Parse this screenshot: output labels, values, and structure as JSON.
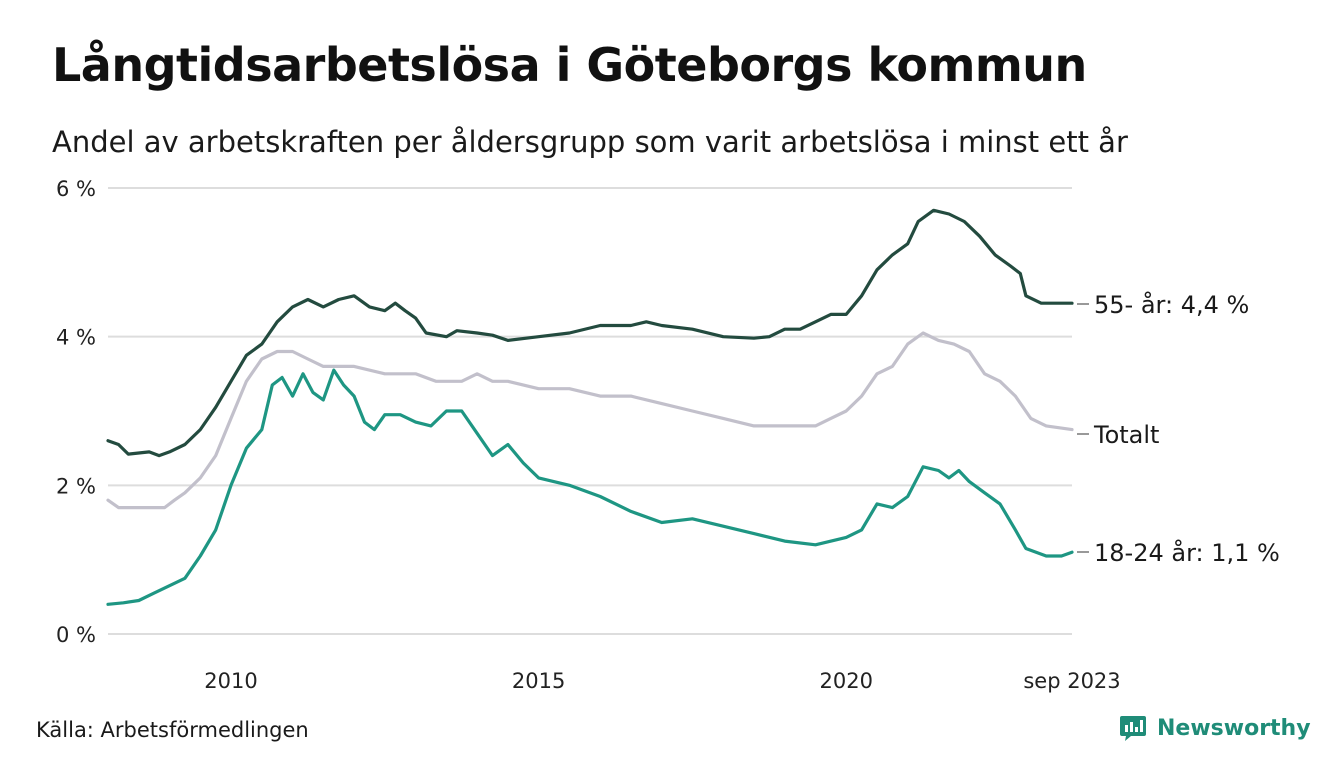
{
  "header": {
    "title": "Långtidsarbetslösa i Göteborgs kommun",
    "subtitle": "Andel av arbetskraften per åldersgrupp som varit arbetslösa i minst ett år"
  },
  "footer": {
    "source": "Källa: Arbetsförmedlingen",
    "brand": "Newsworthy",
    "brand_icon": "newsworthy-logo-icon"
  },
  "colors": {
    "series_55": "#234b3f",
    "series_total": "#c2c0cb",
    "series_18_24": "#1e9683",
    "grid": "#dddddd",
    "brand": "#1f8c78"
  },
  "chart_data": {
    "type": "line",
    "title": "Långtidsarbetslösa i Göteborgs kommun",
    "subtitle": "Andel av arbetskraften per åldersgrupp som varit arbetslösa i minst ett år",
    "xlabel": "",
    "ylabel": "",
    "x_range": [
      2008.0,
      2023.67
    ],
    "ylim": [
      0,
      6
    ],
    "y_ticks": [
      {
        "value": 0,
        "label": "0 %"
      },
      {
        "value": 2,
        "label": "2 %"
      },
      {
        "value": 4,
        "label": "4 %"
      },
      {
        "value": 6,
        "label": "6 %"
      }
    ],
    "x_ticks": [
      {
        "value": 2010,
        "label": "2010"
      },
      {
        "value": 2015,
        "label": "2015"
      },
      {
        "value": 2020,
        "label": "2020"
      },
      {
        "value": 2023.67,
        "label": "sep 2023"
      }
    ],
    "grid": true,
    "legend": "inline-end-labels",
    "series": [
      {
        "name": "55- år",
        "end_label": "55- år: 4,4 %",
        "color": "#234b3f",
        "points": [
          [
            2008.0,
            2.6
          ],
          [
            2008.17,
            2.55
          ],
          [
            2008.33,
            2.42
          ],
          [
            2008.67,
            2.45
          ],
          [
            2008.83,
            2.4
          ],
          [
            2009.0,
            2.45
          ],
          [
            2009.25,
            2.55
          ],
          [
            2009.5,
            2.75
          ],
          [
            2009.75,
            3.05
          ],
          [
            2010.0,
            3.4
          ],
          [
            2010.25,
            3.75
          ],
          [
            2010.5,
            3.9
          ],
          [
            2010.75,
            4.2
          ],
          [
            2011.0,
            4.4
          ],
          [
            2011.25,
            4.5
          ],
          [
            2011.5,
            4.4
          ],
          [
            2011.75,
            4.5
          ],
          [
            2012.0,
            4.55
          ],
          [
            2012.25,
            4.4
          ],
          [
            2012.5,
            4.35
          ],
          [
            2012.67,
            4.45
          ],
          [
            2012.83,
            4.35
          ],
          [
            2013.0,
            4.25
          ],
          [
            2013.17,
            4.05
          ],
          [
            2013.5,
            4.0
          ],
          [
            2013.67,
            4.08
          ],
          [
            2014.0,
            4.05
          ],
          [
            2014.25,
            4.02
          ],
          [
            2014.5,
            3.95
          ],
          [
            2015.0,
            4.0
          ],
          [
            2015.5,
            4.05
          ],
          [
            2016.0,
            4.15
          ],
          [
            2016.5,
            4.15
          ],
          [
            2016.75,
            4.2
          ],
          [
            2017.0,
            4.15
          ],
          [
            2017.5,
            4.1
          ],
          [
            2018.0,
            4.0
          ],
          [
            2018.5,
            3.98
          ],
          [
            2018.75,
            4.0
          ],
          [
            2019.0,
            4.1
          ],
          [
            2019.25,
            4.1
          ],
          [
            2019.5,
            4.2
          ],
          [
            2019.75,
            4.3
          ],
          [
            2020.0,
            4.3
          ],
          [
            2020.25,
            4.55
          ],
          [
            2020.5,
            4.9
          ],
          [
            2020.75,
            5.1
          ],
          [
            2021.0,
            5.25
          ],
          [
            2021.17,
            5.55
          ],
          [
            2021.42,
            5.7
          ],
          [
            2021.67,
            5.65
          ],
          [
            2021.92,
            5.55
          ],
          [
            2022.17,
            5.35
          ],
          [
            2022.42,
            5.1
          ],
          [
            2022.67,
            4.95
          ],
          [
            2022.83,
            4.85
          ],
          [
            2022.92,
            4.55
          ],
          [
            2023.17,
            4.45
          ],
          [
            2023.67,
            4.45
          ]
        ]
      },
      {
        "name": "Totalt",
        "end_label": "Totalt",
        "color": "#c2c0cb",
        "points": [
          [
            2008.0,
            1.8
          ],
          [
            2008.17,
            1.7
          ],
          [
            2008.5,
            1.7
          ],
          [
            2008.92,
            1.7
          ],
          [
            2009.08,
            1.8
          ],
          [
            2009.25,
            1.9
          ],
          [
            2009.5,
            2.1
          ],
          [
            2009.75,
            2.4
          ],
          [
            2010.0,
            2.9
          ],
          [
            2010.25,
            3.4
          ],
          [
            2010.5,
            3.7
          ],
          [
            2010.75,
            3.8
          ],
          [
            2011.0,
            3.8
          ],
          [
            2011.25,
            3.7
          ],
          [
            2011.5,
            3.6
          ],
          [
            2012.0,
            3.6
          ],
          [
            2012.5,
            3.5
          ],
          [
            2013.0,
            3.5
          ],
          [
            2013.33,
            3.4
          ],
          [
            2013.75,
            3.4
          ],
          [
            2014.0,
            3.5
          ],
          [
            2014.25,
            3.4
          ],
          [
            2014.5,
            3.4
          ],
          [
            2015.0,
            3.3
          ],
          [
            2015.5,
            3.3
          ],
          [
            2016.0,
            3.2
          ],
          [
            2016.5,
            3.2
          ],
          [
            2017.0,
            3.1
          ],
          [
            2017.5,
            3.0
          ],
          [
            2018.0,
            2.9
          ],
          [
            2018.5,
            2.8
          ],
          [
            2019.0,
            2.8
          ],
          [
            2019.5,
            2.8
          ],
          [
            2019.75,
            2.9
          ],
          [
            2020.0,
            3.0
          ],
          [
            2020.25,
            3.2
          ],
          [
            2020.5,
            3.5
          ],
          [
            2020.75,
            3.6
          ],
          [
            2021.0,
            3.9
          ],
          [
            2021.25,
            4.05
          ],
          [
            2021.5,
            3.95
          ],
          [
            2021.75,
            3.9
          ],
          [
            2022.0,
            3.8
          ],
          [
            2022.25,
            3.5
          ],
          [
            2022.5,
            3.4
          ],
          [
            2022.75,
            3.2
          ],
          [
            2023.0,
            2.9
          ],
          [
            2023.25,
            2.8
          ],
          [
            2023.67,
            2.75
          ]
        ]
      },
      {
        "name": "18-24 år",
        "end_label": "18-24 år: 1,1 %",
        "color": "#1e9683",
        "points": [
          [
            2008.0,
            0.4
          ],
          [
            2008.25,
            0.42
          ],
          [
            2008.5,
            0.45
          ],
          [
            2008.75,
            0.55
          ],
          [
            2009.0,
            0.65
          ],
          [
            2009.25,
            0.75
          ],
          [
            2009.5,
            1.05
          ],
          [
            2009.75,
            1.4
          ],
          [
            2010.0,
            2.0
          ],
          [
            2010.25,
            2.5
          ],
          [
            2010.5,
            2.75
          ],
          [
            2010.67,
            3.35
          ],
          [
            2010.83,
            3.45
          ],
          [
            2011.0,
            3.2
          ],
          [
            2011.17,
            3.5
          ],
          [
            2011.33,
            3.25
          ],
          [
            2011.5,
            3.15
          ],
          [
            2011.67,
            3.55
          ],
          [
            2011.83,
            3.35
          ],
          [
            2012.0,
            3.2
          ],
          [
            2012.17,
            2.85
          ],
          [
            2012.33,
            2.75
          ],
          [
            2012.5,
            2.95
          ],
          [
            2012.75,
            2.95
          ],
          [
            2013.0,
            2.85
          ],
          [
            2013.25,
            2.8
          ],
          [
            2013.5,
            3.0
          ],
          [
            2013.75,
            3.0
          ],
          [
            2014.0,
            2.7
          ],
          [
            2014.25,
            2.4
          ],
          [
            2014.5,
            2.55
          ],
          [
            2014.75,
            2.3
          ],
          [
            2015.0,
            2.1
          ],
          [
            2015.5,
            2.0
          ],
          [
            2016.0,
            1.85
          ],
          [
            2016.5,
            1.65
          ],
          [
            2017.0,
            1.5
          ],
          [
            2017.5,
            1.55
          ],
          [
            2018.0,
            1.45
          ],
          [
            2018.5,
            1.35
          ],
          [
            2019.0,
            1.25
          ],
          [
            2019.5,
            1.2
          ],
          [
            2020.0,
            1.3
          ],
          [
            2020.25,
            1.4
          ],
          [
            2020.5,
            1.75
          ],
          [
            2020.75,
            1.7
          ],
          [
            2021.0,
            1.85
          ],
          [
            2021.25,
            2.25
          ],
          [
            2021.5,
            2.2
          ],
          [
            2021.67,
            2.1
          ],
          [
            2021.83,
            2.2
          ],
          [
            2022.0,
            2.05
          ],
          [
            2022.25,
            1.9
          ],
          [
            2022.5,
            1.75
          ],
          [
            2022.75,
            1.4
          ],
          [
            2022.92,
            1.15
          ],
          [
            2023.25,
            1.05
          ],
          [
            2023.5,
            1.05
          ],
          [
            2023.67,
            1.1
          ]
        ]
      }
    ]
  }
}
